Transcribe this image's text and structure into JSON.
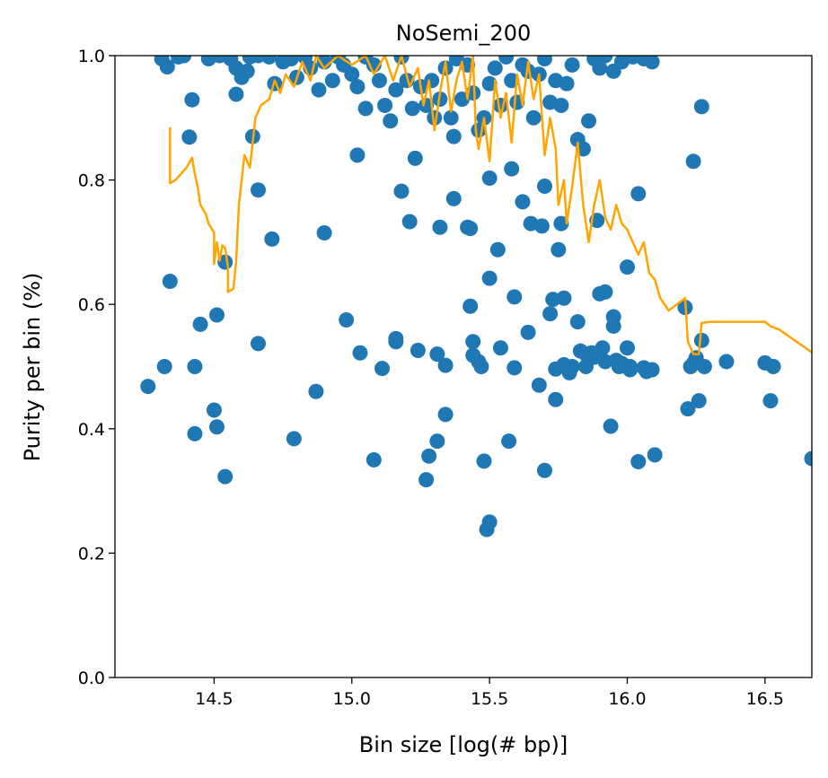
{
  "chart_data": {
    "type": "scatter",
    "title": "NoSemi_200",
    "xlabel": "Bin size [log(# bp)]",
    "ylabel": "Purity per bin (%)",
    "xlim": [
      14.14,
      16.67
    ],
    "ylim": [
      0.0,
      1.0
    ],
    "x_ticks": [
      14.5,
      15.0,
      15.5,
      16.0,
      16.5
    ],
    "x_tick_labels": [
      "14.5",
      "15.0",
      "15.5",
      "16.0",
      "16.5"
    ],
    "y_ticks": [
      0.0,
      0.2,
      0.4,
      0.6,
      0.8,
      1.0
    ],
    "y_tick_labels": [
      "0.0",
      "0.2",
      "0.4",
      "0.6",
      "0.8",
      "1.0"
    ],
    "grid": false,
    "series": [
      {
        "type": "scatter",
        "color": "#1f77b4",
        "points": [
          [
            14.26,
            0.468
          ],
          [
            14.32,
            0.5
          ],
          [
            14.34,
            0.637
          ],
          [
            14.41,
            0.869
          ],
          [
            14.42,
            0.929
          ],
          [
            14.43,
            0.392
          ],
          [
            14.43,
            0.5
          ],
          [
            14.45,
            0.568
          ],
          [
            14.5,
            0.43
          ],
          [
            14.51,
            0.583
          ],
          [
            14.51,
            0.403
          ],
          [
            14.54,
            0.323
          ],
          [
            14.54,
            0.668
          ],
          [
            14.58,
            0.938
          ],
          [
            14.64,
            0.87
          ],
          [
            14.66,
            0.537
          ],
          [
            14.66,
            0.784
          ],
          [
            14.71,
            0.705
          ],
          [
            14.79,
            0.384
          ],
          [
            14.87,
            0.46
          ],
          [
            14.9,
            0.715
          ],
          [
            14.98,
            0.575
          ],
          [
            15.02,
            0.84
          ],
          [
            15.03,
            0.522
          ],
          [
            15.05,
            0.915
          ],
          [
            15.08,
            0.35
          ],
          [
            15.11,
            0.497
          ],
          [
            15.16,
            0.54
          ],
          [
            15.16,
            0.545
          ],
          [
            15.18,
            0.782
          ],
          [
            15.21,
            0.733
          ],
          [
            15.23,
            0.835
          ],
          [
            15.24,
            0.526
          ],
          [
            15.27,
            0.318
          ],
          [
            15.28,
            0.356
          ],
          [
            15.31,
            0.38
          ],
          [
            15.31,
            0.52
          ],
          [
            15.32,
            0.724
          ],
          [
            15.34,
            0.502
          ],
          [
            15.34,
            0.423
          ],
          [
            15.37,
            0.87
          ],
          [
            15.37,
            0.77
          ],
          [
            15.42,
            0.724
          ],
          [
            15.43,
            0.722
          ],
          [
            15.43,
            0.597
          ],
          [
            15.44,
            0.54
          ],
          [
            15.44,
            0.518
          ],
          [
            15.46,
            0.508
          ],
          [
            15.47,
            0.5
          ],
          [
            15.48,
            0.348
          ],
          [
            15.49,
            0.238
          ],
          [
            15.5,
            0.25
          ],
          [
            15.5,
            0.642
          ],
          [
            15.5,
            0.803
          ],
          [
            15.53,
            0.688
          ],
          [
            15.54,
            0.53
          ],
          [
            15.57,
            0.38
          ],
          [
            15.58,
            0.818
          ],
          [
            15.59,
            0.498
          ],
          [
            15.59,
            0.612
          ],
          [
            15.62,
            0.765
          ],
          [
            15.64,
            0.555
          ],
          [
            15.65,
            0.73
          ],
          [
            15.68,
            0.47
          ],
          [
            15.69,
            0.726
          ],
          [
            15.7,
            0.79
          ],
          [
            15.7,
            0.333
          ],
          [
            15.72,
            0.585
          ],
          [
            15.73,
            0.608
          ],
          [
            15.74,
            0.496
          ],
          [
            15.74,
            0.447
          ],
          [
            15.75,
            0.688
          ],
          [
            15.76,
            0.73
          ],
          [
            15.77,
            0.503
          ],
          [
            15.77,
            0.61
          ],
          [
            15.79,
            0.49
          ],
          [
            15.8,
            0.5
          ],
          [
            15.82,
            0.572
          ],
          [
            15.83,
            0.525
          ],
          [
            15.85,
            0.5
          ],
          [
            15.85,
            0.52
          ],
          [
            15.87,
            0.522
          ],
          [
            15.88,
            0.515
          ],
          [
            15.89,
            0.735
          ],
          [
            15.9,
            0.617
          ],
          [
            15.91,
            0.53
          ],
          [
            15.92,
            0.62
          ],
          [
            15.92,
            0.508
          ],
          [
            15.94,
            0.404
          ],
          [
            15.95,
            0.565
          ],
          [
            15.95,
            0.58
          ],
          [
            15.96,
            0.51
          ],
          [
            15.97,
            0.5
          ],
          [
            15.98,
            0.505
          ],
          [
            16.0,
            0.66
          ],
          [
            16.0,
            0.53
          ],
          [
            16.01,
            0.5
          ],
          [
            16.01,
            0.495
          ],
          [
            16.04,
            0.347
          ],
          [
            16.04,
            0.778
          ],
          [
            16.06,
            0.498
          ],
          [
            16.07,
            0.492
          ],
          [
            16.09,
            0.495
          ],
          [
            16.1,
            0.358
          ],
          [
            16.21,
            0.595
          ],
          [
            16.22,
            0.432
          ],
          [
            16.23,
            0.5
          ],
          [
            16.24,
            0.505
          ],
          [
            16.24,
            0.83
          ],
          [
            16.25,
            0.514
          ],
          [
            16.26,
            0.445
          ],
          [
            16.27,
            0.542
          ],
          [
            16.27,
            0.918
          ],
          [
            16.28,
            0.5
          ],
          [
            16.36,
            0.508
          ],
          [
            16.5,
            0.506
          ],
          [
            16.52,
            0.445
          ],
          [
            16.53,
            0.5
          ],
          [
            16.67,
            0.352
          ],
          [
            14.31,
            0.995
          ],
          [
            14.33,
            0.982
          ],
          [
            14.37,
            0.998
          ],
          [
            14.39,
            1.0
          ],
          [
            14.48,
            0.995
          ],
          [
            14.52,
            1.0
          ],
          [
            14.56,
            0.995
          ],
          [
            14.58,
            0.98
          ],
          [
            14.6,
            0.965
          ],
          [
            14.62,
            0.975
          ],
          [
            14.63,
            0.998
          ],
          [
            14.66,
            1.0
          ],
          [
            14.7,
            0.998
          ],
          [
            14.72,
            0.955
          ],
          [
            14.75,
            0.99
          ],
          [
            14.78,
            0.995
          ],
          [
            14.8,
            0.965
          ],
          [
            14.83,
            0.998
          ],
          [
            14.85,
            0.98
          ],
          [
            14.88,
            0.945
          ],
          [
            14.9,
            0.99
          ],
          [
            14.93,
            0.96
          ],
          [
            14.95,
            0.998
          ],
          [
            14.97,
            0.985
          ],
          [
            15.0,
            0.97
          ],
          [
            15.02,
            0.95
          ],
          [
            15.05,
            0.998
          ],
          [
            15.08,
            0.985
          ],
          [
            15.1,
            0.96
          ],
          [
            15.12,
            0.92
          ],
          [
            15.14,
            0.895
          ],
          [
            15.16,
            0.945
          ],
          [
            15.18,
            0.998
          ],
          [
            15.2,
            0.96
          ],
          [
            15.22,
            0.915
          ],
          [
            15.25,
            0.95
          ],
          [
            15.27,
            0.92
          ],
          [
            15.29,
            0.96
          ],
          [
            15.3,
            0.9
          ],
          [
            15.32,
            0.93
          ],
          [
            15.34,
            0.98
          ],
          [
            15.36,
            0.9
          ],
          [
            15.38,
            0.995
          ],
          [
            15.4,
            0.93
          ],
          [
            15.42,
            0.985
          ],
          [
            15.44,
            0.94
          ],
          [
            15.46,
            0.88
          ],
          [
            15.48,
            0.9
          ],
          [
            15.5,
            0.955
          ],
          [
            15.52,
            0.98
          ],
          [
            15.54,
            0.92
          ],
          [
            15.56,
            0.998
          ],
          [
            15.58,
            0.96
          ],
          [
            15.6,
            0.925
          ],
          [
            15.62,
            0.985
          ],
          [
            15.64,
            0.975
          ],
          [
            15.66,
            0.9
          ],
          [
            15.68,
            0.97
          ],
          [
            15.7,
            0.995
          ],
          [
            15.72,
            0.925
          ],
          [
            15.74,
            0.96
          ],
          [
            15.76,
            0.92
          ],
          [
            15.78,
            0.955
          ],
          [
            15.8,
            0.985
          ],
          [
            15.82,
            0.865
          ],
          [
            15.84,
            0.85
          ],
          [
            15.86,
            0.895
          ],
          [
            15.88,
            0.995
          ],
          [
            15.9,
            0.98
          ],
          [
            15.92,
            1.0
          ],
          [
            15.95,
            0.975
          ],
          [
            15.98,
            0.99
          ],
          [
            16.02,
            0.998
          ],
          [
            16.06,
            0.995
          ],
          [
            16.09,
            0.99
          ]
        ]
      },
      {
        "type": "line",
        "color": "#ffa500",
        "points": [
          [
            14.34,
            0.885
          ],
          [
            14.34,
            0.795
          ],
          [
            14.36,
            0.8
          ],
          [
            14.38,
            0.81
          ],
          [
            14.4,
            0.82
          ],
          [
            14.42,
            0.836
          ],
          [
            14.43,
            0.81
          ],
          [
            14.44,
            0.79
          ],
          [
            14.45,
            0.76
          ],
          [
            14.47,
            0.745
          ],
          [
            14.48,
            0.73
          ],
          [
            14.5,
            0.715
          ],
          [
            14.5,
            0.665
          ],
          [
            14.51,
            0.7
          ],
          [
            14.52,
            0.67
          ],
          [
            14.53,
            0.695
          ],
          [
            14.54,
            0.69
          ],
          [
            14.55,
            0.66
          ],
          [
            14.55,
            0.62
          ],
          [
            14.57,
            0.625
          ],
          [
            14.58,
            0.67
          ],
          [
            14.59,
            0.76
          ],
          [
            14.61,
            0.84
          ],
          [
            14.63,
            0.82
          ],
          [
            14.65,
            0.9
          ],
          [
            14.67,
            0.92
          ],
          [
            14.7,
            0.93
          ],
          [
            14.72,
            0.96
          ],
          [
            14.74,
            0.94
          ],
          [
            14.76,
            0.97
          ],
          [
            14.79,
            0.95
          ],
          [
            14.82,
            0.99
          ],
          [
            14.85,
            0.96
          ],
          [
            14.87,
            1.0
          ],
          [
            14.9,
            0.98
          ],
          [
            14.95,
            1.0
          ],
          [
            15.0,
            0.985
          ],
          [
            15.05,
            1.0
          ],
          [
            15.08,
            0.97
          ],
          [
            15.12,
            1.0
          ],
          [
            15.15,
            0.96
          ],
          [
            15.18,
            1.0
          ],
          [
            15.21,
            0.95
          ],
          [
            15.24,
            0.98
          ],
          [
            15.26,
            0.92
          ],
          [
            15.28,
            0.96
          ],
          [
            15.3,
            0.88
          ],
          [
            15.32,
            0.94
          ],
          [
            15.34,
            0.99
          ],
          [
            15.36,
            0.91
          ],
          [
            15.38,
            0.96
          ],
          [
            15.4,
            0.99
          ],
          [
            15.42,
            0.93
          ],
          [
            15.44,
            1.0
          ],
          [
            15.45,
            0.88
          ],
          [
            15.46,
            0.85
          ],
          [
            15.48,
            0.9
          ],
          [
            15.5,
            0.83
          ],
          [
            15.52,
            0.96
          ],
          [
            15.54,
            0.9
          ],
          [
            15.56,
            0.94
          ],
          [
            15.58,
            0.86
          ],
          [
            15.6,
            0.97
          ],
          [
            15.62,
            0.92
          ],
          [
            15.64,
            0.99
          ],
          [
            15.66,
            0.93
          ],
          [
            15.68,
            0.97
          ],
          [
            15.7,
            0.84
          ],
          [
            15.72,
            0.9
          ],
          [
            15.74,
            0.85
          ],
          [
            15.75,
            0.76
          ],
          [
            15.77,
            0.8
          ],
          [
            15.78,
            0.73
          ],
          [
            15.8,
            0.79
          ],
          [
            15.82,
            0.86
          ],
          [
            15.84,
            0.76
          ],
          [
            15.86,
            0.7
          ],
          [
            15.88,
            0.76
          ],
          [
            15.9,
            0.8
          ],
          [
            15.92,
            0.74
          ],
          [
            15.94,
            0.72
          ],
          [
            15.96,
            0.76
          ],
          [
            15.98,
            0.73
          ],
          [
            16.0,
            0.72
          ],
          [
            16.02,
            0.7
          ],
          [
            16.04,
            0.68
          ],
          [
            16.06,
            0.7
          ],
          [
            16.08,
            0.65
          ],
          [
            16.1,
            0.64
          ],
          [
            16.12,
            0.61
          ],
          [
            16.15,
            0.59
          ],
          [
            16.18,
            0.6
          ],
          [
            16.21,
            0.61
          ],
          [
            16.22,
            0.54
          ],
          [
            16.24,
            0.52
          ],
          [
            16.26,
            0.52
          ],
          [
            16.27,
            0.57
          ],
          [
            16.3,
            0.572
          ],
          [
            16.4,
            0.572
          ],
          [
            16.5,
            0.572
          ],
          [
            16.52,
            0.565
          ],
          [
            16.55,
            0.56
          ],
          [
            16.67,
            0.523
          ]
        ]
      }
    ]
  }
}
